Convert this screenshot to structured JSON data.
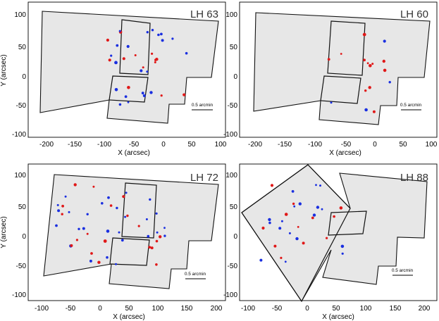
{
  "figure": {
    "panels": [
      {
        "title": "LH 63",
        "xlabel": "X (arcsec)",
        "ylabel": "Y (arcsec)",
        "xticks": [
          "-200",
          "-150",
          "-100",
          "-50",
          "0",
          "50",
          "100"
        ],
        "yticks": [
          "100",
          "50",
          "0",
          "-50",
          "-100"
        ],
        "scale_label": "0.5 arcmin"
      },
      {
        "title": "LH 60",
        "xlabel": "X (arcsec)",
        "ylabel": "",
        "xticks": [
          "-200",
          "-150",
          "-100",
          "-50",
          "0",
          "50",
          "100"
        ],
        "yticks": [
          "100",
          "50",
          "0",
          "-50",
          "-100"
        ],
        "scale_label": "0.5 arcmin"
      },
      {
        "title": "LH 72",
        "xlabel": "X (arcsec)",
        "ylabel": "Y (arcsec)",
        "xticks": [
          "-100",
          "-50",
          "0",
          "50",
          "100",
          "150",
          "200"
        ],
        "yticks": [
          "100",
          "50",
          "0",
          "-50",
          "-100"
        ],
        "scale_label": "0.5 arcmin"
      },
      {
        "title": "LH 88",
        "xlabel": "X (arcsec)",
        "ylabel": "",
        "xticks": [
          "-100",
          "-50",
          "0",
          "50",
          "100",
          "150",
          "200"
        ],
        "yticks": [
          "100",
          "50",
          "0",
          "-50",
          "-100"
        ],
        "scale_label": "0.5 arcmin"
      }
    ],
    "colors": {
      "star_field": "#6a6a6a",
      "red_stars": "#e01818",
      "blue_stars": "#1a2fe0",
      "frame": "#111111"
    }
  }
}
